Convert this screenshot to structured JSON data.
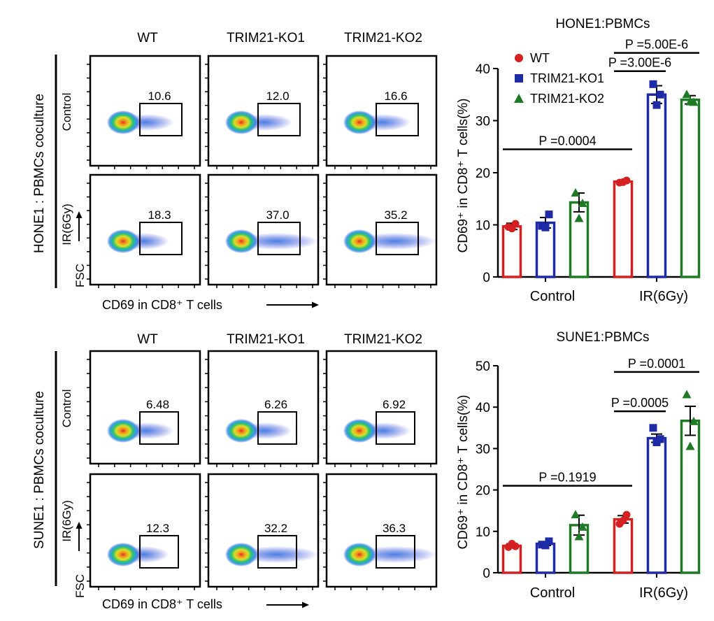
{
  "colors": {
    "wt": "#d42020",
    "ko1": "#1f2aa6",
    "ko2": "#1f7a26",
    "axis": "#000000"
  },
  "flow": [
    {
      "row_title": "HONE1 : PBMCs coculture",
      "columns": [
        "WT",
        "TRIM21-KO1",
        "TRIM21-KO2"
      ],
      "y_axis_label": "FSC",
      "x_axis_label": "CD69 in CD8⁺ T cells",
      "conditions": [
        {
          "label": "Control",
          "values": [
            "10.6",
            "12.0",
            "16.6"
          ]
        },
        {
          "label": "IR(6Gy)",
          "values": [
            "18.3",
            "37.0",
            "35.2"
          ]
        }
      ]
    },
    {
      "row_title": "SUNE1 : PBMCs coculture",
      "columns": [
        "WT",
        "TRIM21-KO1",
        "TRIM21-KO2"
      ],
      "y_axis_label": "FSC",
      "x_axis_label": "CD69 in CD8⁺ T cells",
      "conditions": [
        {
          "label": "Control",
          "values": [
            "6.48",
            "6.26",
            "6.92"
          ]
        },
        {
          "label": "IR(6Gy)",
          "values": [
            "12.3",
            "32.2",
            "36.3"
          ]
        }
      ]
    }
  ],
  "chart_data": [
    {
      "type": "bar",
      "title": "HONE1:PBMCs",
      "xlabel": "",
      "ylabel": "CD69⁺ in CD8⁺ T cells(%)",
      "ylim": [
        0,
        40
      ],
      "yticks": [
        "0",
        "10",
        "20",
        "30",
        "40"
      ],
      "legend_position": "top-left",
      "categories": [
        "Control",
        "IR(6Gy)"
      ],
      "series": [
        {
          "name": "WT",
          "values": [
            9.7,
            18.3
          ],
          "errors": [
            0.6,
            0.3
          ],
          "points": [
            [
              9.6,
              10.2,
              9.3
            ],
            [
              18.1,
              18.5,
              18.2
            ]
          ]
        },
        {
          "name": "TRIM21-KO1",
          "values": [
            10.4,
            35.0
          ],
          "errors": [
            1.0,
            1.7
          ],
          "points": [
            [
              9.8,
              12.0,
              9.5
            ],
            [
              37.0,
              35.0,
              33.0
            ]
          ]
        },
        {
          "name": "TRIM21-KO2",
          "values": [
            14.3,
            34.0
          ],
          "errors": [
            1.8,
            0.8
          ],
          "points": [
            [
              16.1,
              14.1,
              11.2
            ],
            [
              35.0,
              33.5,
              33.6
            ]
          ]
        }
      ],
      "annotations": [
        {
          "text": "P =0.0004",
          "from": {
            "category": 0,
            "series": 0
          },
          "to": {
            "category": 1,
            "series": 0
          },
          "y": 24.5
        },
        {
          "text": "P =3.00E-6",
          "from": {
            "category": 1,
            "series": 0
          },
          "to": {
            "category": 1,
            "series": 1
          },
          "y": 39.5
        },
        {
          "text": "P =5.00E-6",
          "from": {
            "category": 1,
            "series": 0
          },
          "to": {
            "category": 1,
            "series": 2
          },
          "y": 43.0
        }
      ]
    },
    {
      "type": "bar",
      "title": "SUNE1:PBMCs",
      "xlabel": "",
      "ylabel": "CD69⁺ in CD8⁺ T cells(%)",
      "ylim": [
        0,
        50
      ],
      "yticks": [
        "0",
        "10",
        "20",
        "30",
        "40",
        "50"
      ],
      "legend_position": "none",
      "categories": [
        "Control",
        "IR(6Gy)"
      ],
      "series": [
        {
          "name": "WT",
          "values": [
            6.5,
            12.9
          ],
          "errors": [
            0.5,
            0.9
          ],
          "points": [
            [
              6.2,
              6.4,
              7.0
            ],
            [
              11.8,
              14.0,
              12.6
            ]
          ]
        },
        {
          "name": "TRIM21-KO1",
          "values": [
            7.0,
            32.5
          ],
          "errors": [
            0.4,
            1.0
          ],
          "points": [
            [
              6.8,
              7.6,
              6.6
            ],
            [
              35.0,
              32.3,
              31.5
            ]
          ]
        },
        {
          "name": "TRIM21-KO2",
          "values": [
            11.5,
            36.7
          ],
          "errors": [
            2.4,
            3.5
          ],
          "points": [
            [
              14.0,
              11.0,
              8.7
            ],
            [
              43.0,
              36.5,
              30.5
            ]
          ]
        }
      ],
      "annotations": [
        {
          "text": "P =0.1919",
          "from": {
            "category": 0,
            "series": 0
          },
          "to": {
            "category": 1,
            "series": 0
          },
          "y": 21.0
        },
        {
          "text": "P =0.0005",
          "from": {
            "category": 1,
            "series": 0
          },
          "to": {
            "category": 1,
            "series": 1
          },
          "y": 39.0
        },
        {
          "text": "P =0.0001",
          "from": {
            "category": 1,
            "series": 0
          },
          "to": {
            "category": 1,
            "series": 2
          },
          "y": 48.5
        }
      ]
    }
  ]
}
